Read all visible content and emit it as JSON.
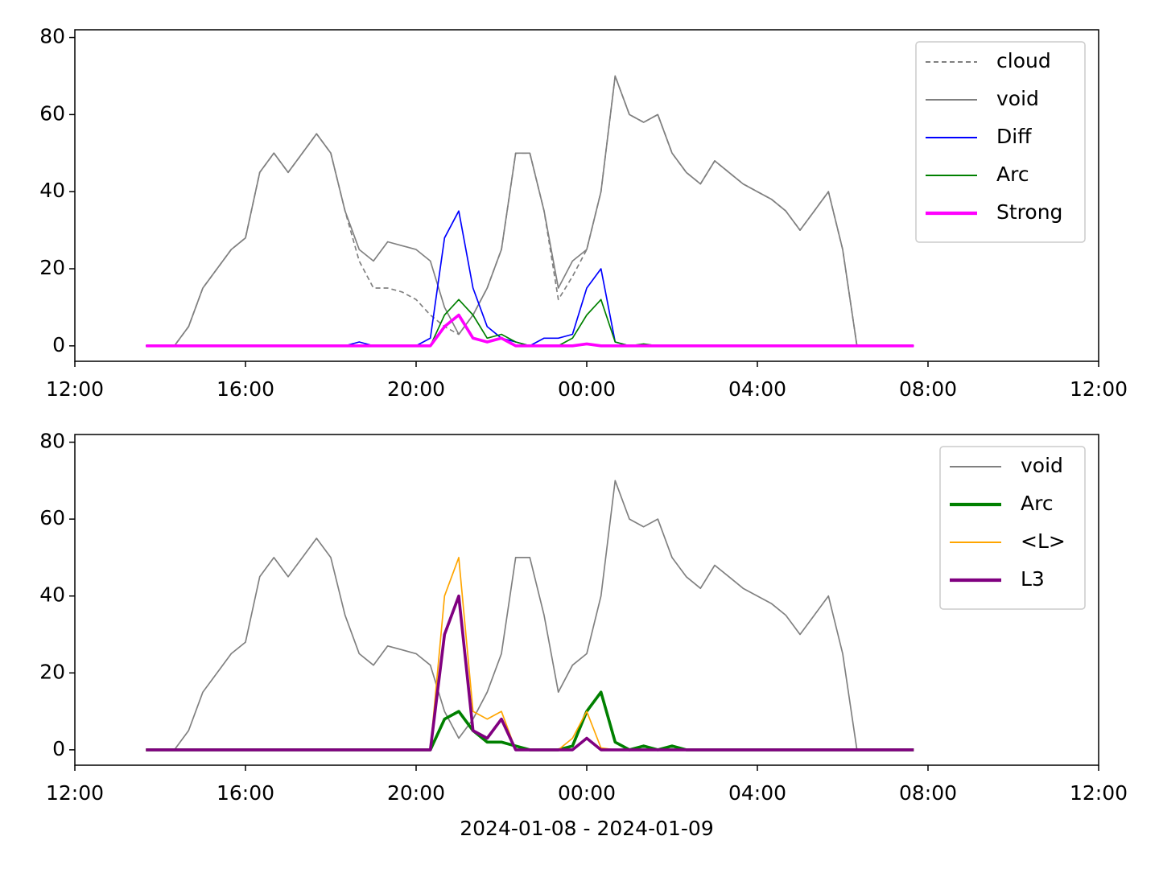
{
  "chart_data": [
    {
      "type": "line",
      "x": [
        "2024-01-08T13:40",
        "2024-01-08T14:00",
        "2024-01-08T14:20",
        "2024-01-08T14:40",
        "2024-01-08T15:00",
        "2024-01-08T15:20",
        "2024-01-08T15:40",
        "2024-01-08T16:00",
        "2024-01-08T16:20",
        "2024-01-08T16:40",
        "2024-01-08T17:00",
        "2024-01-08T17:20",
        "2024-01-08T17:40",
        "2024-01-08T18:00",
        "2024-01-08T18:20",
        "2024-01-08T18:40",
        "2024-01-08T19:00",
        "2024-01-08T19:20",
        "2024-01-08T19:40",
        "2024-01-08T20:00",
        "2024-01-08T20:20",
        "2024-01-08T20:40",
        "2024-01-08T21:00",
        "2024-01-08T21:20",
        "2024-01-08T21:40",
        "2024-01-08T22:00",
        "2024-01-08T22:20",
        "2024-01-08T22:40",
        "2024-01-08T23:00",
        "2024-01-08T23:20",
        "2024-01-08T23:40",
        "2024-01-09T00:00",
        "2024-01-09T00:20",
        "2024-01-09T00:40",
        "2024-01-09T01:00",
        "2024-01-09T01:20",
        "2024-01-09T01:40",
        "2024-01-09T02:00",
        "2024-01-09T02:20",
        "2024-01-09T02:40",
        "2024-01-09T03:00",
        "2024-01-09T03:20",
        "2024-01-09T03:40",
        "2024-01-09T04:00",
        "2024-01-09T04:20",
        "2024-01-09T04:40",
        "2024-01-09T05:00",
        "2024-01-09T05:20",
        "2024-01-09T05:40",
        "2024-01-09T06:00",
        "2024-01-09T06:20",
        "2024-01-09T06:40",
        "2024-01-09T07:00",
        "2024-01-09T07:20",
        "2024-01-09T07:40"
      ],
      "series": [
        {
          "name": "cloud",
          "color": "#808080",
          "linewidth": 1.2,
          "linestyle": "dashed",
          "values": [
            0,
            0,
            0,
            5,
            15,
            20,
            25,
            28,
            45,
            50,
            45,
            50,
            55,
            50,
            35,
            22,
            15,
            15,
            14,
            12,
            8,
            5,
            3,
            8,
            15,
            25,
            50,
            50,
            35,
            12,
            18,
            25,
            40,
            70,
            60,
            58,
            60,
            50,
            45,
            42,
            48,
            45,
            42,
            40,
            38,
            35,
            30,
            35,
            40,
            25,
            0,
            0,
            0,
            0,
            0
          ]
        },
        {
          "name": "void",
          "color": "#808080",
          "linewidth": 1.2,
          "linestyle": "solid",
          "values": [
            0,
            0,
            0,
            5,
            15,
            20,
            25,
            28,
            45,
            50,
            45,
            50,
            55,
            50,
            35,
            25,
            22,
            27,
            26,
            25,
            22,
            10,
            3,
            8,
            15,
            25,
            50,
            50,
            35,
            15,
            22,
            25,
            40,
            70,
            60,
            58,
            60,
            50,
            45,
            42,
            48,
            45,
            42,
            40,
            38,
            35,
            30,
            35,
            40,
            25,
            0,
            0,
            0,
            0,
            0
          ]
        },
        {
          "name": "Diff",
          "color": "#0000ff",
          "linewidth": 1.2,
          "linestyle": "solid",
          "values": [
            0,
            0,
            0,
            0,
            0,
            0,
            0,
            0,
            0,
            0,
            0,
            0,
            0,
            0,
            0,
            1,
            0,
            0,
            0,
            0,
            2,
            28,
            35,
            15,
            5,
            2,
            1,
            0,
            2,
            2,
            3,
            15,
            20,
            1,
            0,
            0,
            0,
            0,
            0,
            0,
            0,
            0,
            0,
            0,
            0,
            0,
            0,
            0,
            0,
            0,
            0,
            0,
            0,
            0,
            0
          ]
        },
        {
          "name": "Arc",
          "color": "#008000",
          "linewidth": 1.2,
          "linestyle": "solid",
          "values": [
            0,
            0,
            0,
            0,
            0,
            0,
            0,
            0,
            0,
            0,
            0,
            0,
            0,
            0,
            0,
            0,
            0,
            0,
            0,
            0,
            0,
            8,
            12,
            8,
            2,
            3,
            1,
            0,
            0,
            0,
            2,
            8,
            12,
            1,
            0,
            0.5,
            0,
            0,
            0,
            0,
            0,
            0,
            0,
            0,
            0,
            0,
            0,
            0,
            0,
            0,
            0,
            0,
            0,
            0,
            0
          ]
        },
        {
          "name": "Strong",
          "color": "#ff00ff",
          "linewidth": 2.6,
          "linestyle": "solid",
          "values": [
            0,
            0,
            0,
            0,
            0,
            0,
            0,
            0,
            0,
            0,
            0,
            0,
            0,
            0,
            0,
            0,
            0,
            0,
            0,
            0,
            0,
            5,
            8,
            2,
            1,
            2,
            0,
            0,
            0,
            0,
            0,
            0.5,
            0,
            0,
            0,
            0,
            0,
            0,
            0,
            0,
            0,
            0,
            0,
            0,
            0,
            0,
            0,
            0,
            0,
            0,
            0,
            0,
            0,
            0,
            0
          ]
        }
      ],
      "xlim": [
        "2024-01-08T12:00",
        "2024-01-09T12:00"
      ],
      "xticks": [
        {
          "value": "2024-01-08T12:00",
          "label": "12:00"
        },
        {
          "value": "2024-01-08T16:00",
          "label": "16:00"
        },
        {
          "value": "2024-01-08T20:00",
          "label": "20:00"
        },
        {
          "value": "2024-01-09T00:00",
          "label": "00:00"
        },
        {
          "value": "2024-01-09T04:00",
          "label": "04:00"
        },
        {
          "value": "2024-01-09T08:00",
          "label": "08:00"
        },
        {
          "value": "2024-01-09T12:00",
          "label": "12:00"
        }
      ],
      "ylim": [
        -4,
        82
      ],
      "yticks": [
        0,
        20,
        40,
        60,
        80
      ],
      "legend": "upper right"
    },
    {
      "type": "line",
      "x": [
        "2024-01-08T13:40",
        "2024-01-08T14:00",
        "2024-01-08T14:20",
        "2024-01-08T14:40",
        "2024-01-08T15:00",
        "2024-01-08T15:20",
        "2024-01-08T15:40",
        "2024-01-08T16:00",
        "2024-01-08T16:20",
        "2024-01-08T16:40",
        "2024-01-08T17:00",
        "2024-01-08T17:20",
        "2024-01-08T17:40",
        "2024-01-08T18:00",
        "2024-01-08T18:20",
        "2024-01-08T18:40",
        "2024-01-08T19:00",
        "2024-01-08T19:20",
        "2024-01-08T19:40",
        "2024-01-08T20:00",
        "2024-01-08T20:20",
        "2024-01-08T20:40",
        "2024-01-08T21:00",
        "2024-01-08T21:20",
        "2024-01-08T21:40",
        "2024-01-08T22:00",
        "2024-01-08T22:20",
        "2024-01-08T22:40",
        "2024-01-08T23:00",
        "2024-01-08T23:20",
        "2024-01-08T23:40",
        "2024-01-09T00:00",
        "2024-01-09T00:20",
        "2024-01-09T00:40",
        "2024-01-09T01:00",
        "2024-01-09T01:20",
        "2024-01-09T01:40",
        "2024-01-09T02:00",
        "2024-01-09T02:20",
        "2024-01-09T02:40",
        "2024-01-09T03:00",
        "2024-01-09T03:20",
        "2024-01-09T03:40",
        "2024-01-09T04:00",
        "2024-01-09T04:20",
        "2024-01-09T04:40",
        "2024-01-09T05:00",
        "2024-01-09T05:20",
        "2024-01-09T05:40",
        "2024-01-09T06:00",
        "2024-01-09T06:20",
        "2024-01-09T06:40",
        "2024-01-09T07:00",
        "2024-01-09T07:20",
        "2024-01-09T07:40"
      ],
      "series": [
        {
          "name": "void",
          "color": "#808080",
          "linewidth": 1.2,
          "linestyle": "solid",
          "values": [
            0,
            0,
            0,
            5,
            15,
            20,
            25,
            28,
            45,
            50,
            45,
            50,
            55,
            50,
            35,
            25,
            22,
            27,
            26,
            25,
            22,
            10,
            3,
            8,
            15,
            25,
            50,
            50,
            35,
            15,
            22,
            25,
            40,
            70,
            60,
            58,
            60,
            50,
            45,
            42,
            48,
            45,
            42,
            40,
            38,
            35,
            30,
            35,
            40,
            25,
            0,
            0,
            0,
            0,
            0
          ]
        },
        {
          "name": "Arc",
          "color": "#008000",
          "linewidth": 2.6,
          "linestyle": "solid",
          "values": [
            0,
            0,
            0,
            0,
            0,
            0,
            0,
            0,
            0,
            0,
            0,
            0,
            0,
            0,
            0,
            0,
            0,
            0,
            0,
            0,
            0,
            8,
            10,
            5,
            2,
            2,
            1,
            0,
            0,
            0,
            1,
            10,
            15,
            2,
            0,
            1,
            0,
            1,
            0,
            0,
            0,
            0,
            0,
            0,
            0,
            0,
            0,
            0,
            0,
            0,
            0,
            0,
            0,
            0,
            0
          ]
        },
        {
          "name": "<L>",
          "color": "#ffa500",
          "linewidth": 1.2,
          "linestyle": "solid",
          "values": [
            0,
            0,
            0,
            0,
            0,
            0,
            0,
            0,
            0,
            0,
            0,
            0,
            0,
            0,
            0,
            0,
            0,
            0,
            0,
            0,
            0,
            40,
            50,
            10,
            8,
            10,
            0,
            0,
            0,
            0,
            3,
            10,
            0.5,
            0,
            0,
            0,
            0,
            0,
            0,
            0,
            0,
            0,
            0,
            0,
            0,
            0,
            0,
            0,
            0,
            0,
            0,
            0,
            0,
            0,
            0
          ]
        },
        {
          "name": "L3",
          "color": "#800080",
          "linewidth": 2.6,
          "linestyle": "solid",
          "values": [
            0,
            0,
            0,
            0,
            0,
            0,
            0,
            0,
            0,
            0,
            0,
            0,
            0,
            0,
            0,
            0,
            0,
            0,
            0,
            0,
            0,
            30,
            40,
            5,
            3,
            8,
            0,
            0,
            0,
            0,
            0,
            3,
            0,
            0,
            0,
            0,
            0,
            0,
            0,
            0,
            0,
            0,
            0,
            0,
            0,
            0,
            0,
            0,
            0,
            0,
            0,
            0,
            0,
            0,
            0
          ]
        }
      ],
      "xlim": [
        "2024-01-08T12:00",
        "2024-01-09T12:00"
      ],
      "xticks": [
        {
          "value": "2024-01-08T12:00",
          "label": "12:00"
        },
        {
          "value": "2024-01-08T16:00",
          "label": "16:00"
        },
        {
          "value": "2024-01-08T20:00",
          "label": "20:00"
        },
        {
          "value": "2024-01-09T00:00",
          "label": "00:00"
        },
        {
          "value": "2024-01-09T04:00",
          "label": "04:00"
        },
        {
          "value": "2024-01-09T08:00",
          "label": "08:00"
        },
        {
          "value": "2024-01-09T12:00",
          "label": "12:00"
        }
      ],
      "ylim": [
        -4,
        82
      ],
      "yticks": [
        0,
        20,
        40,
        60,
        80
      ],
      "legend": "upper right",
      "xlabel": "2024-01-08 - 2024-01-09"
    }
  ]
}
